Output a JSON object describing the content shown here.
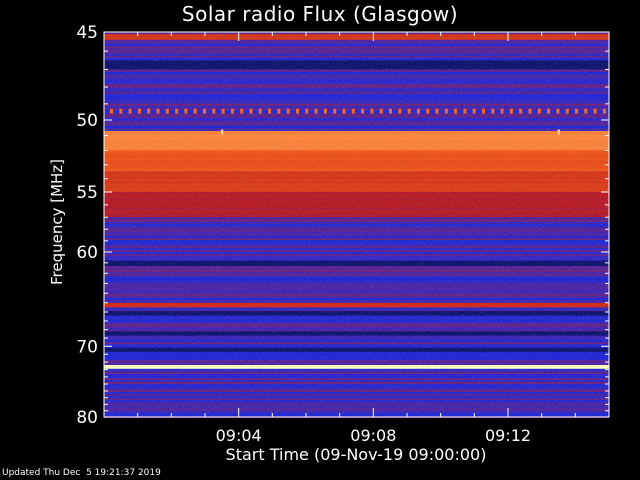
{
  "title": "Solar radio Flux (Glasgow)",
  "footer": "Updated Thu Dec  5 19:21:37 2019",
  "chart_data": {
    "type": "heatmap",
    "title": "Solar radio Flux (Glasgow)",
    "xlabel": "Start Time (09-Nov-19 09:00:00)",
    "ylabel": "Frequency [MHz]",
    "x_unit": "minutes after 09:00:00",
    "xlim": [
      0,
      15
    ],
    "ylim": [
      80,
      45
    ],
    "y_scale": "reciprocal",
    "x_ticks": [
      {
        "value": 4,
        "label": "09:04"
      },
      {
        "value": 8,
        "label": "09:08"
      },
      {
        "value": 12,
        "label": "09:12"
      }
    ],
    "y_ticks": [
      {
        "value": 45,
        "label": "45"
      },
      {
        "value": 50,
        "label": "50"
      },
      {
        "value": 55,
        "label": "55"
      },
      {
        "value": 60,
        "label": "60"
      },
      {
        "value": 70,
        "label": "70"
      },
      {
        "value": 80,
        "label": "80"
      }
    ],
    "colormap": [
      "#000044",
      "#1020e0",
      "#c01010",
      "#ff6010",
      "#ffffc0"
    ],
    "background_intensity": 0.3,
    "bands": [
      {
        "freq_from": 45.1,
        "freq_to": 45.4,
        "intensity": 0.6
      },
      {
        "freq_from": 49.3,
        "freq_to": 49.6,
        "intensity": 0.75,
        "style": "dashed"
      },
      {
        "freq_from": 50.7,
        "freq_to": 52.0,
        "intensity": 0.8
      },
      {
        "freq_from": 52.0,
        "freq_to": 53.5,
        "intensity": 0.68
      },
      {
        "freq_from": 53.5,
        "freq_to": 55.0,
        "intensity": 0.6
      },
      {
        "freq_from": 55.0,
        "freq_to": 57.0,
        "intensity": 0.48
      },
      {
        "freq_from": 65.0,
        "freq_to": 65.5,
        "intensity": 0.55
      },
      {
        "freq_from": 72.4,
        "freq_to": 72.9,
        "intensity": 1.0
      }
    ],
    "dark_bands": [
      {
        "freq_from": 46.5,
        "freq_to": 47.0
      },
      {
        "freq_from": 60.8,
        "freq_to": 61.3
      },
      {
        "freq_from": 65.9,
        "freq_to": 66.4
      },
      {
        "freq_from": 68.2,
        "freq_to": 68.7
      },
      {
        "freq_from": 70.2,
        "freq_to": 70.7
      }
    ],
    "spikes": [
      {
        "time": 3.5,
        "freq": 50.8
      },
      {
        "time": 13.5,
        "freq": 50.8
      }
    ]
  }
}
